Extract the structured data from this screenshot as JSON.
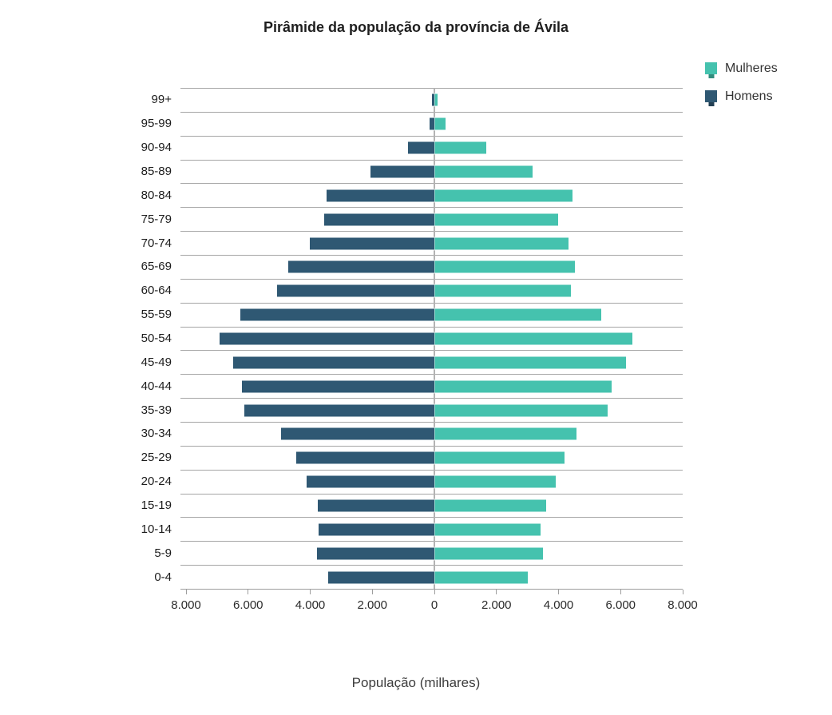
{
  "chart_data": {
    "type": "bar",
    "variant": "population-pyramid",
    "title": "Pirâmide da população da província de Ávila",
    "xlabel": "População (milhares)",
    "legend_position": "top-right",
    "grid": "horizontal category separators on, vertical off, zero line on",
    "xlim": [
      -8000,
      8000
    ],
    "x_ticks": [
      {
        "value": -8000,
        "label": "8.000"
      },
      {
        "value": -6000,
        "label": "6.000"
      },
      {
        "value": -4000,
        "label": "4.000"
      },
      {
        "value": -2000,
        "label": "2.000"
      },
      {
        "value": 0,
        "label": "0"
      },
      {
        "value": 2000,
        "label": "2.000"
      },
      {
        "value": 4000,
        "label": "4.000"
      },
      {
        "value": 6000,
        "label": "6.000"
      },
      {
        "value": 8000,
        "label": "8.000"
      }
    ],
    "categories_top_to_bottom": [
      "99+",
      "95-99",
      "90-94",
      "85-89",
      "80-84",
      "75-79",
      "70-74",
      "65-69",
      "60-64",
      "55-59",
      "50-54",
      "45-49",
      "40-44",
      "35-39",
      "30-34",
      "25-29",
      "20-24",
      "15-19",
      "10-14",
      "5-9",
      "0-4"
    ],
    "series": [
      {
        "name": "Mulheres",
        "side": "right",
        "color": "#45c2ae",
        "values": [
          110,
          360,
          1680,
          3170,
          4450,
          3980,
          4320,
          4520,
          4410,
          5380,
          6370,
          6180,
          5720,
          5590,
          4590,
          4190,
          3900,
          3610,
          3410,
          3510,
          3010
        ]
      },
      {
        "name": "Homens",
        "side": "left",
        "color": "#2f5873",
        "values": [
          70,
          150,
          840,
          2050,
          3480,
          3540,
          4020,
          4710,
          5070,
          6240,
          6910,
          6470,
          6190,
          6130,
          4930,
          4450,
          4120,
          3760,
          3740,
          3770,
          3410
        ]
      }
    ]
  }
}
